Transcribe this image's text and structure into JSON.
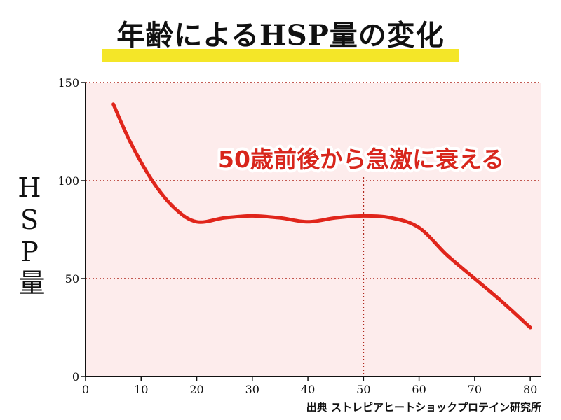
{
  "chart_data": {
    "type": "line",
    "title": "年齢によるHSP量の変化",
    "ylabel": "HSP量",
    "xlabel": "",
    "xlim": [
      0,
      82
    ],
    "ylim": [
      0,
      150
    ],
    "x_ticks": [
      0,
      10,
      20,
      30,
      40,
      50,
      60,
      70,
      80
    ],
    "y_ticks": [
      0,
      50,
      100,
      150
    ],
    "grid": "horizontal dotted at 50, 100, 150",
    "series": [
      {
        "x": [
          5,
          8,
          12,
          16,
          20,
          25,
          30,
          35,
          40,
          45,
          50,
          55,
          60,
          65,
          70,
          75,
          80
        ],
        "y": [
          139,
          120,
          100,
          86,
          79,
          81,
          82,
          81,
          79,
          81,
          82,
          81,
          76,
          62,
          50,
          38,
          25
        ],
        "color": "#e0251b"
      }
    ],
    "annotations": [
      {
        "text": "50歳前後から急激に衰える",
        "x": 50,
        "marker": "vertical dotted line"
      }
    ],
    "source": "出典 ストレピアヒートショックプロテイン研究所",
    "background_color": "#fdecec",
    "grid_color": "#b0271c"
  }
}
